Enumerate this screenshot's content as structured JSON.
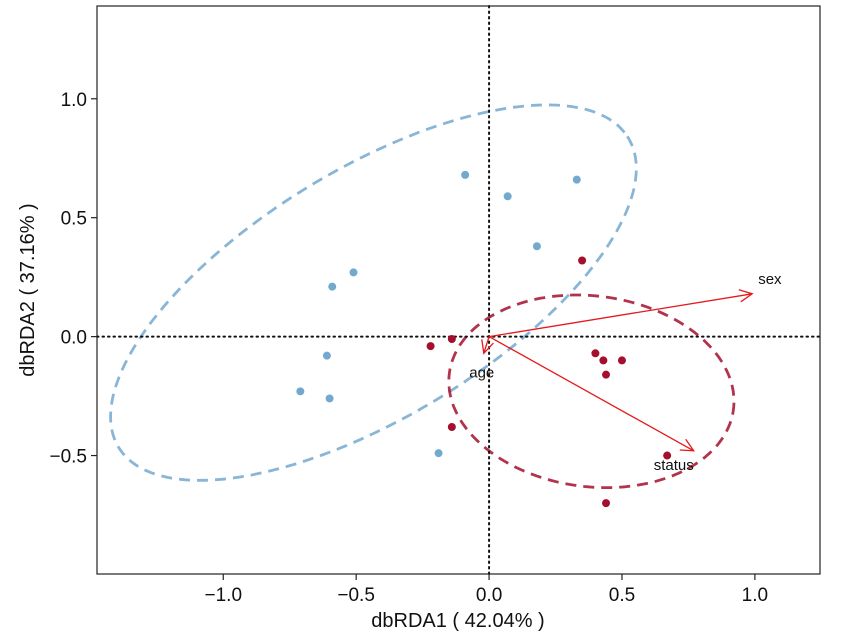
{
  "chart_data": {
    "type": "scatter",
    "xlabel": "dbRDA1 ( 42.04% )",
    "ylabel": "dbRDA2 ( 37.16% )",
    "xlim": [
      -1.475,
      1.245
    ],
    "ylim": [
      -0.998,
      1.39
    ],
    "x_ticks": [
      {
        "v": -1.0,
        "label": "−1.0"
      },
      {
        "v": -0.5,
        "label": "−0.5"
      },
      {
        "v": 0.0,
        "label": "0.0"
      },
      {
        "v": 0.5,
        "label": "0.5"
      },
      {
        "v": 1.0,
        "label": "1.0"
      }
    ],
    "y_ticks": [
      {
        "v": -0.5,
        "label": "−0.5"
      },
      {
        "v": 0.0,
        "label": "0.0"
      },
      {
        "v": 0.5,
        "label": "0.5"
      },
      {
        "v": 1.0,
        "label": "1.0"
      }
    ],
    "grid": false,
    "reference_lines": {
      "x": 0,
      "y": 0,
      "style": "dotted"
    },
    "series": [
      {
        "color": "#74A9CF",
        "points": [
          {
            "x": -0.09,
            "y": 0.68
          },
          {
            "x": 0.07,
            "y": 0.59
          },
          {
            "x": 0.33,
            "y": 0.66
          },
          {
            "x": 0.18,
            "y": 0.38
          },
          {
            "x": -0.51,
            "y": 0.27
          },
          {
            "x": -0.59,
            "y": 0.21
          },
          {
            "x": -0.61,
            "y": -0.08
          },
          {
            "x": -0.71,
            "y": -0.23
          },
          {
            "x": -0.6,
            "y": -0.26
          },
          {
            "x": -0.19,
            "y": -0.49
          }
        ],
        "ellipse": {
          "cx": -0.435,
          "cy": 0.185,
          "rx": 1.16,
          "ry": 0.505,
          "angle_deg": 35.5
        }
      },
      {
        "color": "#A50F2D",
        "points": [
          {
            "x": 0.35,
            "y": 0.32
          },
          {
            "x": -0.22,
            "y": -0.04
          },
          {
            "x": -0.14,
            "y": -0.01
          },
          {
            "x": 0.4,
            "y": -0.07
          },
          {
            "x": 0.43,
            "y": -0.1
          },
          {
            "x": 0.5,
            "y": -0.1
          },
          {
            "x": 0.44,
            "y": -0.16
          },
          {
            "x": -0.14,
            "y": -0.38
          },
          {
            "x": 0.67,
            "y": -0.5
          },
          {
            "x": 0.44,
            "y": -0.7
          }
        ],
        "ellipse": {
          "cx": 0.385,
          "cy": -0.23,
          "rx": 0.54,
          "ry": 0.4,
          "angle_deg": -10
        }
      }
    ],
    "arrows": {
      "color": "#E41A1C",
      "items": [
        {
          "label": "sex",
          "x": 0.99,
          "y": 0.18
        },
        {
          "label": "age",
          "x": -0.02,
          "y": -0.07
        },
        {
          "label": "status",
          "x": 0.77,
          "y": -0.48
        }
      ]
    }
  }
}
